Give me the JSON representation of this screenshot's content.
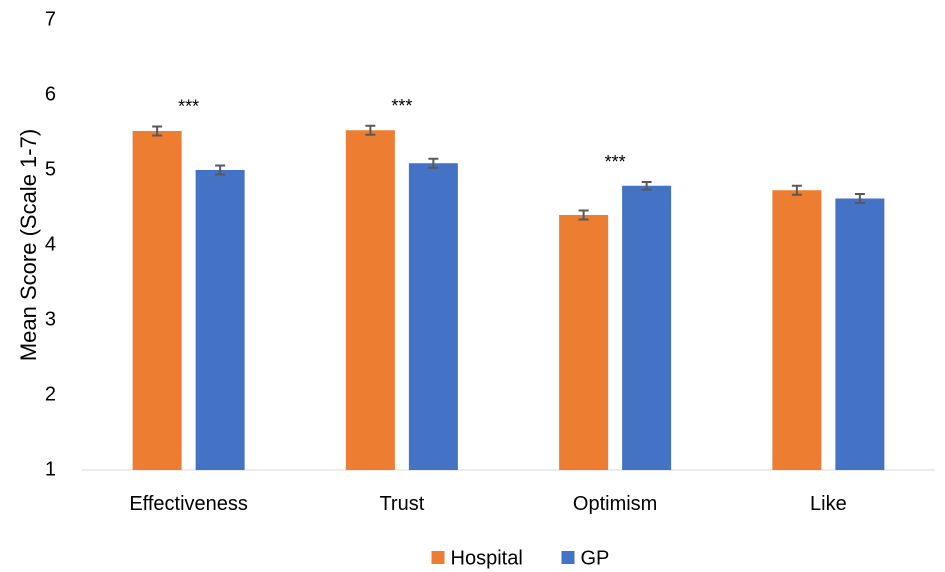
{
  "chart_data": {
    "type": "bar",
    "categories": [
      "Effectiveness",
      "Trust",
      "Optimism",
      "Like"
    ],
    "series": [
      {
        "name": "Hospital",
        "color": "#ED7D31",
        "values": [
          5.52,
          5.53,
          4.4,
          4.73
        ],
        "errors": [
          0.06,
          0.06,
          0.06,
          0.06
        ]
      },
      {
        "name": "GP",
        "color": "#4472C4",
        "values": [
          5.0,
          5.09,
          4.79,
          4.62
        ],
        "errors": [
          0.06,
          0.06,
          0.05,
          0.06
        ]
      }
    ],
    "annotations": [
      {
        "category_index": 0,
        "text": "***"
      },
      {
        "category_index": 1,
        "text": "***"
      },
      {
        "category_index": 2,
        "text": "***"
      }
    ],
    "title": "",
    "xlabel": "",
    "ylabel": "Mean Score (Scale 1-7)",
    "ylim": [
      1,
      7
    ],
    "yticks": [
      1,
      2,
      3,
      4,
      5,
      6,
      7
    ],
    "grid": false,
    "legend_position": "bottom"
  }
}
